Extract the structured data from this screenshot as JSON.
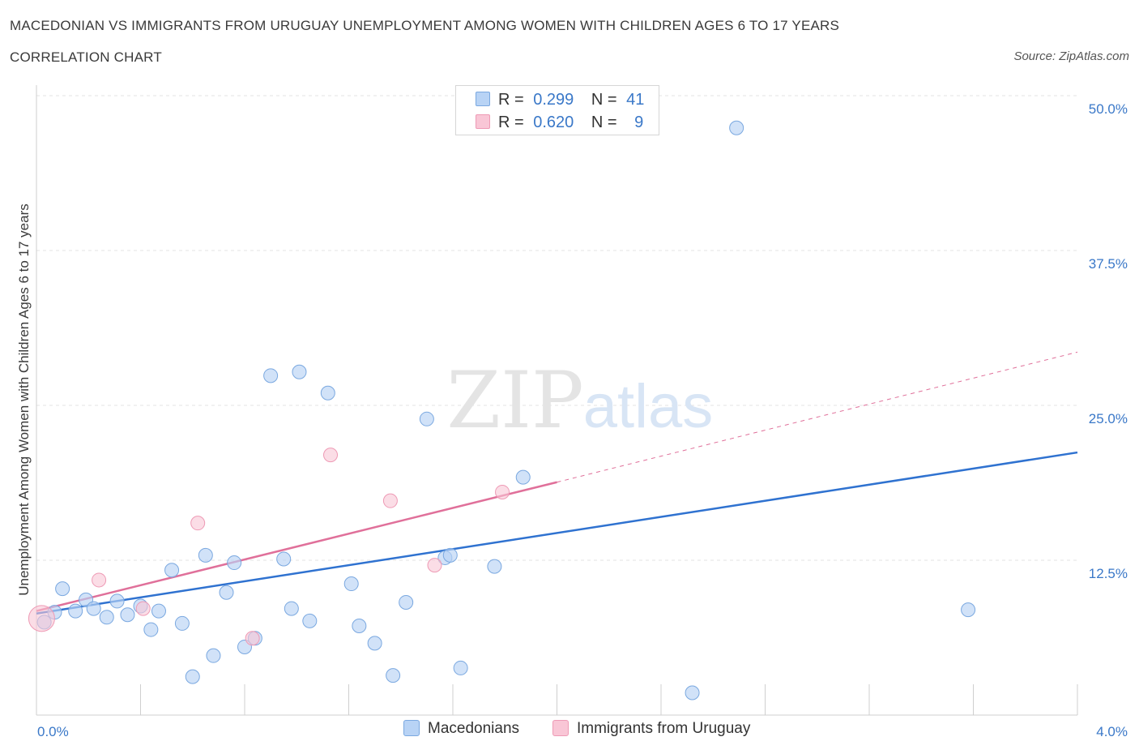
{
  "header": {
    "title": "MACEDONIAN VS IMMIGRANTS FROM URUGUAY UNEMPLOYMENT AMONG WOMEN WITH CHILDREN AGES 6 TO 17 YEARS",
    "subtitle": "CORRELATION CHART",
    "source": "Source: ZipAtlas.com"
  },
  "watermark": {
    "zip": "ZIP",
    "atlas": "atlas"
  },
  "legend": {
    "r_label": "R =",
    "n_label": "N =",
    "rows": [
      {
        "r": "0.299",
        "n": "41"
      },
      {
        "r": "0.620",
        "n": "9"
      }
    ]
  },
  "colors": {
    "macedonians_fill": "#b8d3f5",
    "macedonians_stroke": "#7aa8e0",
    "macedonians_line": "#2f72d0",
    "uruguay_fill": "#f9c6d6",
    "uruguay_stroke": "#ee9ab5",
    "uruguay_line": "#e0709a",
    "axis_text": "#3a78c8",
    "grid": "#e3e3e3"
  },
  "chart_data": {
    "type": "scatter",
    "title": "MACEDONIAN VS IMMIGRANTS FROM URUGUAY UNEMPLOYMENT AMONG WOMEN WITH CHILDREN AGES 6 TO 17 YEARS",
    "xlabel": "",
    "ylabel": "Unemployment Among Women with Children Ages 6 to 17 years",
    "xlim": [
      0,
      4.0
    ],
    "ylim": [
      0,
      50
    ],
    "x_ticks": [
      "0.0%",
      "4.0%"
    ],
    "y_ticks": [
      "12.5%",
      "25.0%",
      "37.5%",
      "50.0%"
    ],
    "grid": true,
    "legend_position": "top-center",
    "series": [
      {
        "name": "Macedonians",
        "r": 0.299,
        "n": 41,
        "points": [
          [
            0.03,
            7.5
          ],
          [
            0.07,
            8.3
          ],
          [
            0.1,
            10.2
          ],
          [
            0.15,
            8.4
          ],
          [
            0.19,
            9.3
          ],
          [
            0.22,
            8.6
          ],
          [
            0.27,
            7.9
          ],
          [
            0.31,
            9.2
          ],
          [
            0.35,
            8.1
          ],
          [
            0.4,
            8.8
          ],
          [
            0.44,
            6.9
          ],
          [
            0.47,
            8.4
          ],
          [
            0.52,
            11.7
          ],
          [
            0.56,
            7.4
          ],
          [
            0.6,
            3.1
          ],
          [
            0.65,
            12.9
          ],
          [
            0.68,
            4.8
          ],
          [
            0.73,
            9.9
          ],
          [
            0.76,
            12.3
          ],
          [
            0.8,
            5.5
          ],
          [
            0.84,
            6.2
          ],
          [
            0.9,
            27.4
          ],
          [
            0.95,
            12.6
          ],
          [
            0.98,
            8.6
          ],
          [
            1.01,
            27.7
          ],
          [
            1.05,
            7.6
          ],
          [
            1.12,
            26.0
          ],
          [
            1.21,
            10.6
          ],
          [
            1.24,
            7.2
          ],
          [
            1.3,
            5.8
          ],
          [
            1.37,
            3.2
          ],
          [
            1.42,
            9.1
          ],
          [
            1.5,
            23.9
          ],
          [
            1.57,
            12.7
          ],
          [
            1.59,
            12.9
          ],
          [
            1.63,
            3.8
          ],
          [
            1.76,
            12.0
          ],
          [
            1.87,
            19.2
          ],
          [
            2.52,
            1.8
          ],
          [
            2.69,
            47.4
          ],
          [
            3.58,
            8.5
          ]
        ],
        "trend": {
          "x": [
            0.0,
            4.0
          ],
          "y": [
            8.2,
            21.2
          ]
        }
      },
      {
        "name": "Immigrants from Uruguay",
        "r": 0.62,
        "n": 9,
        "points": [
          [
            0.02,
            7.8
          ],
          [
            0.24,
            10.9
          ],
          [
            0.41,
            8.6
          ],
          [
            0.62,
            15.5
          ],
          [
            0.83,
            6.2
          ],
          [
            1.13,
            21.0
          ],
          [
            1.36,
            17.3
          ],
          [
            1.53,
            12.1
          ],
          [
            1.79,
            18.0
          ]
        ],
        "trend": {
          "x": [
            0.0,
            2.0
          ],
          "y": [
            8.4,
            18.8
          ]
        },
        "trend_extension": {
          "x": [
            2.0,
            4.0
          ],
          "y": [
            18.8,
            29.3
          ]
        }
      }
    ]
  },
  "bottom_legend": [
    {
      "label": "Macedonians"
    },
    {
      "label": "Immigrants from Uruguay"
    }
  ]
}
